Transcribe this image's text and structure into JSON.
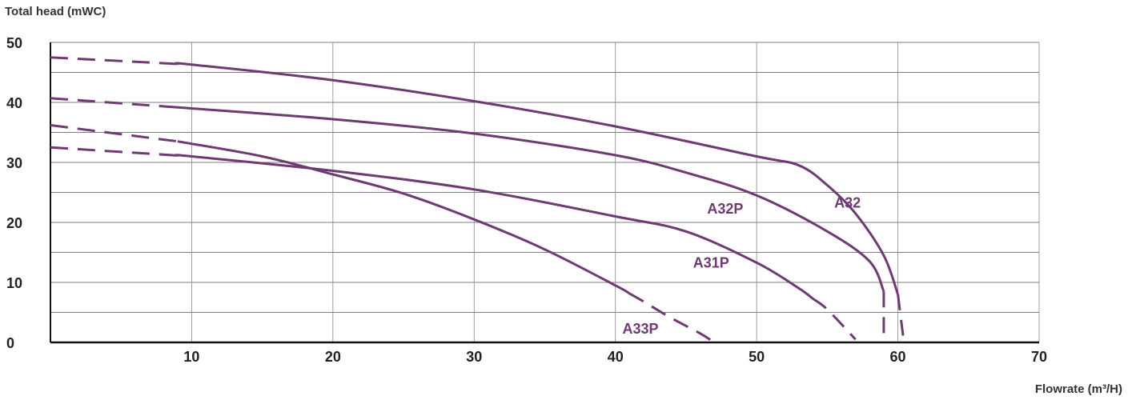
{
  "chart_data": {
    "type": "line",
    "title": "",
    "ylabel": "Total head (mWC)",
    "xlabel": "Flowrate (m³/H)",
    "xlim": [
      0,
      70
    ],
    "ylim": [
      0,
      50
    ],
    "x_ticks": [
      "10",
      "20",
      "30",
      "40",
      "50",
      "60",
      "70"
    ],
    "y_ticks": [
      "0",
      "10",
      "20",
      "30",
      "40",
      "50"
    ],
    "grid": true,
    "series_color": "#6e3a72",
    "series": [
      {
        "name": "A32",
        "points": [
          [
            0,
            47.5
          ],
          [
            10,
            46.3
          ],
          [
            20,
            43.7
          ],
          [
            30,
            40.2
          ],
          [
            40,
            36.0
          ],
          [
            50,
            31.0
          ],
          [
            53,
            29.5
          ],
          [
            55,
            26.2
          ],
          [
            57,
            21.5
          ],
          [
            59,
            14.5
          ],
          [
            60,
            8.0
          ]
        ],
        "dashed_before": 9,
        "dashed_after": 60,
        "dash_tail_end": [
          60.4,
          0.5
        ]
      },
      {
        "name": "A32P",
        "points": [
          [
            0,
            40.7
          ],
          [
            10,
            39.0
          ],
          [
            20,
            37.2
          ],
          [
            30,
            34.8
          ],
          [
            40,
            31.2
          ],
          [
            45,
            28.3
          ],
          [
            50,
            24.5
          ],
          [
            55,
            18.5
          ],
          [
            58,
            13.5
          ],
          [
            59,
            8.5
          ]
        ],
        "dashed_before": 9,
        "dashed_after": 59,
        "dash_tail_end": [
          59,
          0.5
        ]
      },
      {
        "name": "A31P",
        "points": [
          [
            0,
            32.5
          ],
          [
            10,
            31.0
          ],
          [
            20,
            28.6
          ],
          [
            30,
            25.5
          ],
          [
            40,
            21.0
          ],
          [
            45,
            18.5
          ],
          [
            50,
            13.3
          ],
          [
            53,
            9.0
          ],
          [
            55,
            5.5
          ],
          [
            57,
            0.5
          ]
        ],
        "dashed_before": 9,
        "dashed_after": 54,
        "dash_tail_end": null
      },
      {
        "name": "A33P",
        "points": [
          [
            0,
            36.2
          ],
          [
            9,
            33.5
          ],
          [
            15,
            31.0
          ],
          [
            20,
            28.0
          ],
          [
            25,
            24.8
          ],
          [
            30,
            20.5
          ],
          [
            35,
            15.5
          ],
          [
            40,
            9.5
          ],
          [
            42,
            6.8
          ],
          [
            44,
            4.0
          ],
          [
            46,
            1.5
          ],
          [
            47,
            0.0
          ]
        ],
        "dashed_before": 9,
        "dashed_after": 41,
        "dash_tail_end": null
      }
    ],
    "annotations": [
      {
        "text": "A32",
        "x": 55.5,
        "y": 22.5
      },
      {
        "text": "A32P",
        "x": 46.5,
        "y": 21.5
      },
      {
        "text": "A31P",
        "x": 45.5,
        "y": 12.5
      },
      {
        "text": "A33P",
        "x": 40.5,
        "y": 1.5
      }
    ]
  }
}
